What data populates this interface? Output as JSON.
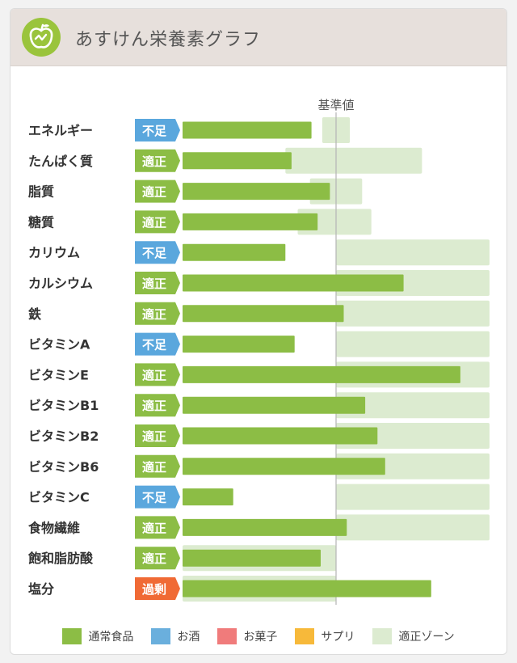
{
  "header": {
    "title": "あすけん栄養素グラフ",
    "logo_icon": "apple-icon"
  },
  "colors": {
    "normal_food": "#8cbd45",
    "alcohol": "#6aafdd",
    "sweets": "#f07b7b",
    "supplement": "#f7b93a",
    "zone": "#dcebd0",
    "status_fusoku": "#5aa7dd",
    "status_tekisei": "#8cbd45",
    "status_kajo": "#f06a35"
  },
  "legend": [
    {
      "label": "通常食品",
      "color": "#8cbd45"
    },
    {
      "label": "お酒",
      "color": "#6aafdd"
    },
    {
      "label": "お菓子",
      "color": "#f07b7b"
    },
    {
      "label": "サプリ",
      "color": "#f7b93a"
    },
    {
      "label": "適正ゾーン",
      "color": "#dcebd0"
    }
  ],
  "chart_data": {
    "type": "bar",
    "orientation": "horizontal",
    "reference_label": "基準値",
    "reference_value": 100,
    "xlim": [
      0,
      200
    ],
    "categories": [
      "エネルギー",
      "たんぱく質",
      "脂質",
      "糖質",
      "カリウム",
      "カルシウム",
      "鉄",
      "ビタミンA",
      "ビタミンE",
      "ビタミンB1",
      "ビタミンB2",
      "ビタミンB6",
      "ビタミンC",
      "食物繊維",
      "飽和脂肪酸",
      "塩分"
    ],
    "status": [
      "不足",
      "適正",
      "適正",
      "適正",
      "不足",
      "適正",
      "適正",
      "不足",
      "適正",
      "適正",
      "適正",
      "適正",
      "不足",
      "適正",
      "適正",
      "過剰"
    ],
    "values": [
      84,
      71,
      96,
      88,
      67,
      144,
      105,
      73,
      181,
      119,
      127,
      132,
      33,
      107,
      90,
      162
    ],
    "zone_ranges": [
      [
        91,
        109
      ],
      [
        67,
        156
      ],
      [
        83,
        117
      ],
      [
        75,
        123
      ],
      [
        100,
        200
      ],
      [
        100,
        200
      ],
      [
        100,
        200
      ],
      [
        100,
        200
      ],
      [
        100,
        200
      ],
      [
        100,
        200
      ],
      [
        100,
        200
      ],
      [
        100,
        200
      ],
      [
        100,
        200
      ],
      [
        100,
        200
      ],
      [
        0,
        100
      ],
      [
        0,
        100
      ]
    ],
    "legend_position": "bottom"
  }
}
